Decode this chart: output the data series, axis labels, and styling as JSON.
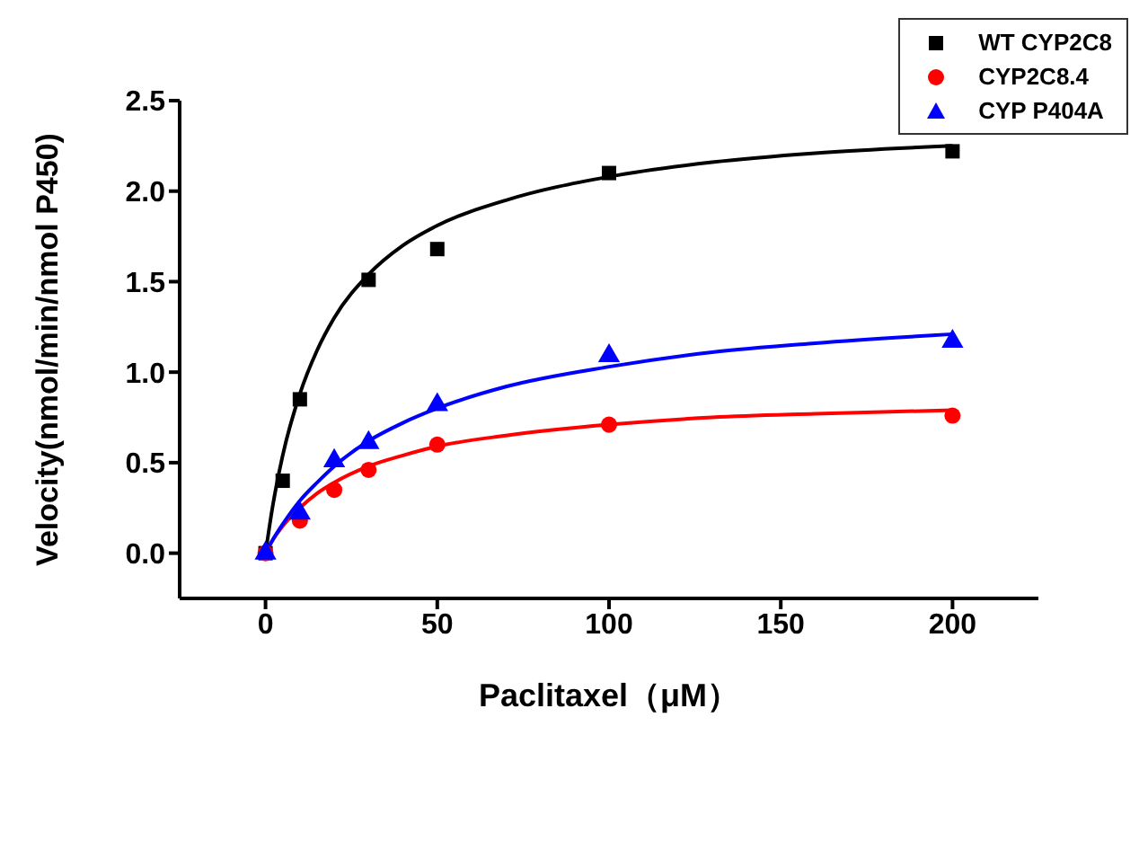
{
  "chart_data": {
    "type": "scatter",
    "xlabel": "Paclitaxel（μM）",
    "ylabel": "Velocity(nmol/min/nmol P450)",
    "xlim": [
      -25,
      225
    ],
    "xticks": [
      0,
      50,
      100,
      150,
      200
    ],
    "ylim": [
      -0.25,
      2.5
    ],
    "yticks": [
      {
        "value": 0,
        "label": "0.0"
      },
      {
        "value": 0.5,
        "label": "0.5"
      },
      {
        "value": 1,
        "label": "1.0"
      },
      {
        "value": 1.5,
        "label": "1.5"
      },
      {
        "value": 2,
        "label": "2.0"
      },
      {
        "value": 2.5,
        "label": "2.5"
      }
    ],
    "grid": false,
    "legend": "top right",
    "series": [
      {
        "name": "WT CYP2C8",
        "color": "#000000",
        "marker": "square",
        "x": [
          0,
          5,
          10,
          30,
          50,
          100,
          200
        ],
        "values": [
          0,
          0.4,
          0.85,
          1.51,
          1.68,
          2.1,
          2.22
        ]
      },
      {
        "name": "CYP2C8.4",
        "color": "#ff0000",
        "marker": "circle",
        "x": [
          0,
          10,
          20,
          30,
          50,
          100,
          200
        ],
        "values": [
          0,
          0.18,
          0.35,
          0.46,
          0.6,
          0.71,
          0.76
        ]
      },
      {
        "name": "CYP P404A",
        "color": "#0000ff",
        "marker": "triangle",
        "x": [
          0,
          10,
          20,
          30,
          50,
          100,
          200
        ],
        "values": [
          0,
          0.22,
          0.51,
          0.61,
          0.82,
          1.09,
          1.17
        ]
      },
      {
        "type": "line",
        "color": "#000000",
        "marker": "none",
        "line_style": "solid",
        "x": [
          0,
          2,
          5,
          10,
          15,
          20,
          30,
          40,
          50,
          70,
          100,
          130,
          160,
          200
        ],
        "values": [
          0,
          0.25,
          0.54,
          0.88,
          1.12,
          1.3,
          1.54,
          1.7,
          1.81,
          1.95,
          2.08,
          2.16,
          2.21,
          2.25
        ]
      },
      {
        "type": "line",
        "color": "#ff0000",
        "marker": "none",
        "line_style": "solid",
        "x": [
          0,
          2,
          5,
          10,
          15,
          20,
          30,
          40,
          50,
          70,
          100,
          130,
          160,
          200
        ],
        "values": [
          0,
          0.07,
          0.15,
          0.25,
          0.33,
          0.39,
          0.48,
          0.54,
          0.59,
          0.65,
          0.71,
          0.75,
          0.77,
          0.79
        ]
      },
      {
        "type": "line",
        "color": "#0000ff",
        "marker": "none",
        "line_style": "solid",
        "x": [
          0,
          2,
          5,
          10,
          15,
          20,
          30,
          40,
          50,
          70,
          100,
          130,
          160,
          200
        ],
        "values": [
          0,
          0.07,
          0.16,
          0.29,
          0.39,
          0.48,
          0.62,
          0.72,
          0.8,
          0.92,
          1.03,
          1.11,
          1.16,
          1.21
        ]
      }
    ]
  }
}
